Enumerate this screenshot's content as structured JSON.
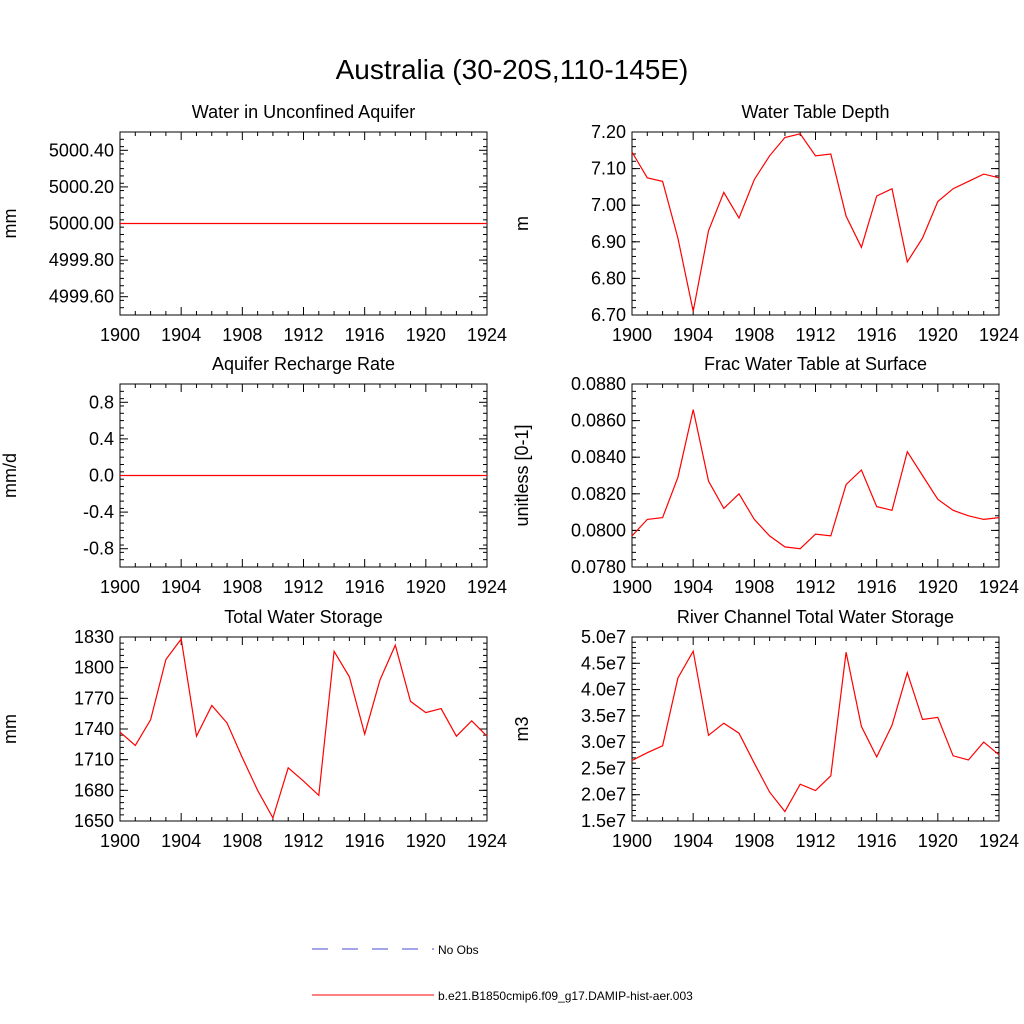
{
  "page": {
    "title": "Australia (30-20S,110-145E)"
  },
  "colors": {
    "model": "#ff0000",
    "obs": "#4a4ad0",
    "axis": "#000000"
  },
  "legend": [
    {
      "label": "No Obs",
      "style": "dashed",
      "color": "#4a4ad0"
    },
    {
      "label": "b.e21.B1850cmip6.f09_g17.DAMIP-hist-aer.003",
      "style": "solid",
      "color": "#ff0000"
    }
  ],
  "chart_data": [
    {
      "type": "line",
      "title": "Water in Unconfined Aquifer",
      "ylabel": "mm",
      "xlim": [
        1900,
        1924
      ],
      "xticks": [
        "1900",
        "1904",
        "1908",
        "1912",
        "1916",
        "1920",
        "1924"
      ],
      "ylim": [
        4999.5,
        5000.5
      ],
      "yticks": [
        "4999.60",
        "4999.80",
        "5000.00",
        "5000.20",
        "5000.40"
      ],
      "ytick_values": [
        4999.6,
        4999.8,
        5000.0,
        5000.2,
        5000.4
      ],
      "x": [
        1900,
        1924
      ],
      "series": [
        {
          "values": [
            5000.0,
            5000.0
          ]
        }
      ]
    },
    {
      "type": "line",
      "title": "Water Table Depth",
      "ylabel": "m",
      "xlim": [
        1900,
        1924
      ],
      "xticks": [
        "1900",
        "1904",
        "1908",
        "1912",
        "1916",
        "1920",
        "1924"
      ],
      "ylim": [
        6.7,
        7.2
      ],
      "yticks": [
        "6.70",
        "6.80",
        "6.90",
        "7.00",
        "7.10",
        "7.20"
      ],
      "ytick_values": [
        6.7,
        6.8,
        6.9,
        7.0,
        7.1,
        7.2
      ],
      "x": [
        1900,
        1901,
        1902,
        1903,
        1904,
        1905,
        1906,
        1907,
        1908,
        1909,
        1910,
        1911,
        1912,
        1913,
        1914,
        1915,
        1916,
        1917,
        1918,
        1919,
        1920,
        1921,
        1922,
        1923,
        1924
      ],
      "series": [
        {
          "values": [
            7.145,
            7.075,
            7.065,
            6.91,
            6.71,
            6.93,
            7.035,
            6.965,
            7.07,
            7.135,
            7.185,
            7.195,
            7.135,
            7.14,
            6.97,
            6.885,
            7.025,
            7.045,
            6.845,
            6.91,
            7.01,
            7.045,
            7.065,
            7.085,
            7.075
          ]
        }
      ]
    },
    {
      "type": "line",
      "title": "Aquifer Recharge Rate",
      "ylabel": "mm/d",
      "xlim": [
        1900,
        1924
      ],
      "xticks": [
        "1900",
        "1904",
        "1908",
        "1912",
        "1916",
        "1920",
        "1924"
      ],
      "ylim": [
        -1.0,
        1.0
      ],
      "yticks": [
        "-0.8",
        "-0.4",
        "0.0",
        "0.4",
        "0.8"
      ],
      "ytick_values": [
        -0.8,
        -0.4,
        0.0,
        0.4,
        0.8
      ],
      "x": [
        1900,
        1924
      ],
      "series": [
        {
          "values": [
            0.0,
            0.0
          ]
        }
      ]
    },
    {
      "type": "line",
      "title": "Frac Water Table at Surface",
      "ylabel": "unitless [0-1]",
      "xlim": [
        1900,
        1924
      ],
      "xticks": [
        "1900",
        "1904",
        "1908",
        "1912",
        "1916",
        "1920",
        "1924"
      ],
      "ylim": [
        0.078,
        0.088
      ],
      "yticks": [
        "0.0780",
        "0.0800",
        "0.0820",
        "0.0840",
        "0.0860",
        "0.0880"
      ],
      "ytick_values": [
        0.078,
        0.08,
        0.082,
        0.084,
        0.086,
        0.088
      ],
      "x": [
        1900,
        1901,
        1902,
        1903,
        1904,
        1905,
        1906,
        1907,
        1908,
        1909,
        1910,
        1911,
        1912,
        1913,
        1914,
        1915,
        1916,
        1917,
        1918,
        1919,
        1920,
        1921,
        1922,
        1923,
        1924
      ],
      "series": [
        {
          "values": [
            0.0797,
            0.0806,
            0.0807,
            0.0829,
            0.0866,
            0.0827,
            0.0812,
            0.082,
            0.0806,
            0.0797,
            0.0791,
            0.079,
            0.0798,
            0.0797,
            0.0825,
            0.0833,
            0.0813,
            0.0811,
            0.0843,
            0.083,
            0.0817,
            0.0811,
            0.0808,
            0.0806,
            0.0807
          ]
        }
      ]
    },
    {
      "type": "line",
      "title": "Total Water Storage",
      "ylabel": "mm",
      "xlim": [
        1900,
        1924
      ],
      "xticks": [
        "1900",
        "1904",
        "1908",
        "1912",
        "1916",
        "1920",
        "1924"
      ],
      "ylim": [
        1650,
        1830
      ],
      "yticks": [
        "1650",
        "1680",
        "1710",
        "1740",
        "1770",
        "1800",
        "1830"
      ],
      "ytick_values": [
        1650,
        1680,
        1710,
        1740,
        1770,
        1800,
        1830
      ],
      "x": [
        1900,
        1901,
        1902,
        1903,
        1904,
        1905,
        1906,
        1907,
        1908,
        1909,
        1910,
        1911,
        1912,
        1913,
        1914,
        1915,
        1916,
        1917,
        1918,
        1919,
        1920,
        1921,
        1922,
        1923,
        1924
      ],
      "series": [
        {
          "values": [
            1737,
            1724,
            1749,
            1808,
            1828,
            1733,
            1763,
            1746,
            1712,
            1680,
            1653,
            1702,
            1689,
            1675,
            1816,
            1791,
            1735,
            1788,
            1822,
            1767,
            1756,
            1760,
            1733,
            1748,
            1733
          ]
        }
      ]
    },
    {
      "type": "line",
      "title": "River Channel Total Water Storage",
      "ylabel": "m3",
      "xlim": [
        1900,
        1924
      ],
      "xticks": [
        "1900",
        "1904",
        "1908",
        "1912",
        "1916",
        "1920",
        "1924"
      ],
      "ylim": [
        15000000,
        50000000
      ],
      "yticks": [
        "1.5e7",
        "2.0e7",
        "2.5e7",
        "3.0e7",
        "3.5e7",
        "4.0e7",
        "4.5e7",
        "5.0e7"
      ],
      "ytick_values": [
        15000000,
        20000000,
        25000000,
        30000000,
        35000000,
        40000000,
        45000000,
        50000000
      ],
      "x": [
        1900,
        1901,
        1902,
        1903,
        1904,
        1905,
        1906,
        1907,
        1908,
        1909,
        1910,
        1911,
        1912,
        1913,
        1914,
        1915,
        1916,
        1917,
        1918,
        1919,
        1920,
        1921,
        1922,
        1923,
        1924
      ],
      "series": [
        {
          "values": [
            26500000,
            28000000,
            29300000,
            42200000,
            47300000,
            31300000,
            33600000,
            31700000,
            26000000,
            20500000,
            16800000,
            22000000,
            20800000,
            23600000,
            47100000,
            33000000,
            27200000,
            33200000,
            43200000,
            34300000,
            34700000,
            27400000,
            26600000,
            30000000,
            27600000
          ]
        }
      ]
    }
  ]
}
